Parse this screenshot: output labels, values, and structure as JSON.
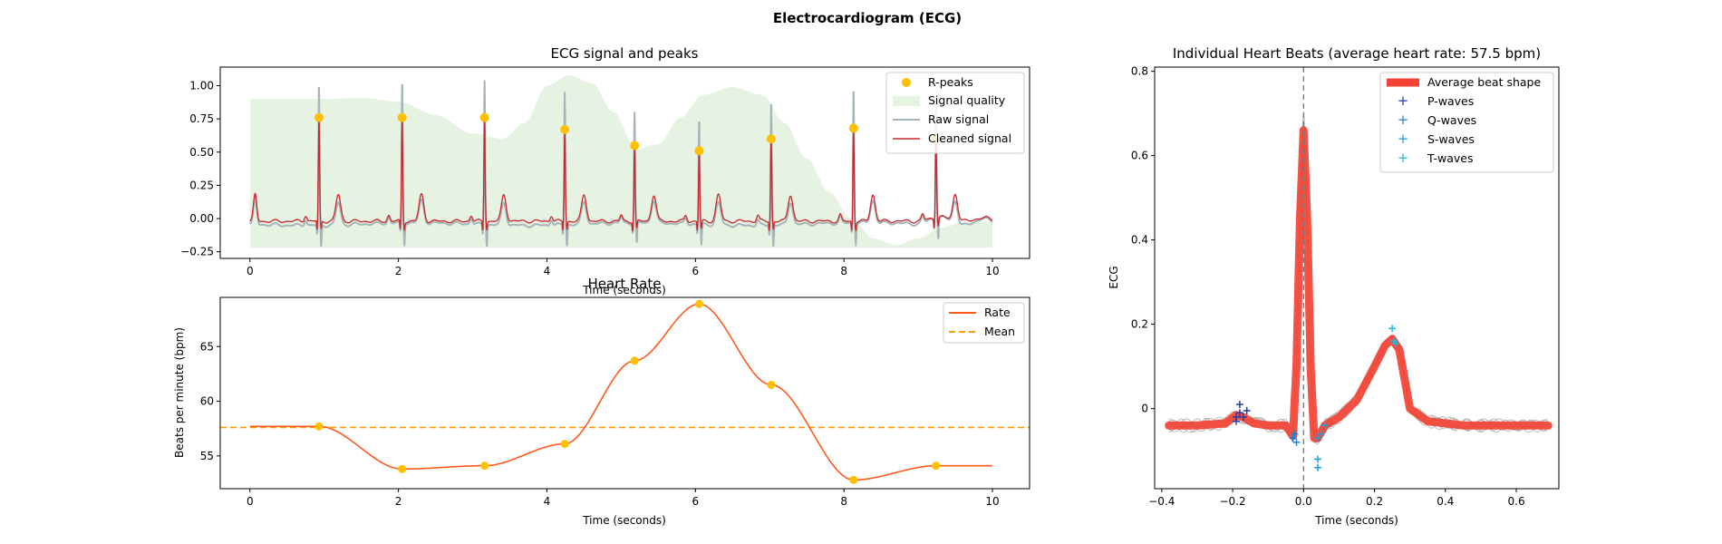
{
  "figure": {
    "title": "Electrocardiogram (ECG)",
    "colors": {
      "peak": "#ffc000",
      "quality": "#e6f3e3",
      "raw": "#a7b5bb",
      "cleaned": "#c9282d",
      "rate": "#ff5a1e",
      "mean": "#ff9d00",
      "average_beat": "#f44336",
      "individual_beats": "#b5b5b5",
      "p_waves": "#1f3fa8",
      "q_waves": "#1f7fd0",
      "s_waves": "#1fa0d8",
      "t_waves": "#20b8d8",
      "guide_line": "#777777"
    }
  },
  "chart_data": [
    {
      "id": "ecg_signal",
      "type": "line",
      "title": "ECG signal and peaks",
      "xlabel": "Time (seconds)",
      "ylabel": "",
      "xlim": [
        -0.4,
        10.5
      ],
      "ylim": [
        -0.3,
        1.14
      ],
      "xticks": [
        0,
        2,
        4,
        6,
        8,
        10
      ],
      "yticks": [
        -0.25,
        0.0,
        0.25,
        0.5,
        0.75,
        1.0
      ],
      "ytick_labels": [
        "−0.25",
        "0.00",
        "0.25",
        "0.50",
        "0.75",
        "1.00"
      ],
      "grid": false,
      "legend": {
        "position": "top-right",
        "entries": [
          "R-peaks",
          "Signal quality",
          "Raw signal",
          "Cleaned signal"
        ]
      },
      "r_peaks": {
        "name": "R-peaks",
        "x": [
          0.93,
          2.05,
          3.16,
          4.24,
          5.18,
          6.05,
          7.02,
          8.13,
          9.24
        ],
        "y": [
          0.76,
          0.76,
          0.76,
          0.67,
          0.55,
          0.51,
          0.6,
          0.68,
          0.6
        ],
        "raw_peak": [
          1.04,
          1.05,
          1.06,
          0.97,
          0.8,
          0.77,
          0.88,
          1.0,
          0.9
        ]
      },
      "signal_quality": {
        "name": "Signal quality",
        "x": [
          0,
          0.5,
          1.0,
          1.5,
          2.0,
          2.5,
          3.0,
          3.4,
          3.7,
          4.0,
          4.3,
          4.6,
          4.9,
          5.2,
          5.5,
          5.8,
          6.1,
          6.5,
          6.9,
          7.2,
          7.5,
          7.8,
          8.1,
          8.4,
          8.7,
          9.0,
          9.3,
          9.6,
          10.0
        ],
        "y": [
          0.9,
          0.9,
          0.9,
          0.91,
          0.88,
          0.78,
          0.64,
          0.6,
          0.72,
          1.0,
          1.08,
          1.02,
          0.8,
          0.52,
          0.56,
          0.76,
          0.93,
          0.99,
          0.93,
          0.72,
          0.45,
          0.2,
          0.0,
          -0.15,
          -0.2,
          -0.15,
          -0.07,
          -0.03,
          -0.02
        ],
        "baseline": -0.22
      },
      "raw_signal": {
        "name": "Raw signal",
        "baseline": -0.03,
        "t_wave_height": 0.17
      },
      "cleaned_signal": {
        "name": "Cleaned signal",
        "baseline": -0.02,
        "t_wave_height": 0.2
      }
    },
    {
      "id": "heart_rate",
      "type": "line",
      "title": "Heart Rate",
      "xlabel": "Time (seconds)",
      "ylabel": "Beats per minute (bpm)",
      "xlim": [
        -0.4,
        10.5
      ],
      "ylim": [
        52.0,
        69.5
      ],
      "xticks": [
        0,
        2,
        4,
        6,
        8,
        10
      ],
      "yticks": [
        55,
        60,
        65
      ],
      "grid": false,
      "legend": {
        "position": "top-right",
        "entries": [
          "Rate",
          "Mean"
        ]
      },
      "series": [
        {
          "name": "Rate",
          "x": [
            0,
            0.93,
            2.05,
            3.16,
            4.24,
            5.18,
            6.05,
            7.02,
            8.13,
            9.24,
            10.0
          ],
          "y": [
            57.7,
            57.7,
            53.8,
            54.1,
            56.1,
            63.7,
            68.9,
            61.5,
            52.8,
            54.1,
            54.1
          ]
        }
      ],
      "points": {
        "x": [
          0.93,
          2.05,
          3.16,
          4.24,
          5.18,
          6.05,
          7.02,
          8.13,
          9.24
        ],
        "y": [
          57.7,
          53.8,
          54.1,
          56.1,
          63.7,
          68.9,
          61.5,
          52.8,
          54.1
        ]
      },
      "mean": {
        "name": "Mean",
        "value": 57.6
      }
    },
    {
      "id": "heart_beats",
      "type": "line",
      "title": "Individual Heart Beats (average heart rate: 57.5 bpm)",
      "xlabel": "Time (seconds)",
      "ylabel": "ECG",
      "xlim": [
        -0.42,
        0.72
      ],
      "ylim": [
        -0.19,
        0.81
      ],
      "xticks": [
        -0.4,
        -0.2,
        0.0,
        0.2,
        0.4,
        0.6
      ],
      "xtick_labels": [
        "−0.4",
        "−0.2",
        "0.0",
        "0.2",
        "0.4",
        "0.6"
      ],
      "yticks": [
        0.0,
        0.2,
        0.4,
        0.6,
        0.8
      ],
      "grid": false,
      "legend": {
        "position": "top-right",
        "entries": [
          "Average beat shape",
          "P-waves",
          "Q-waves",
          "S-waves",
          "T-waves"
        ]
      },
      "average_beat": {
        "name": "Average beat shape",
        "x": [
          -0.38,
          -0.3,
          -0.22,
          -0.19,
          -0.17,
          -0.14,
          -0.1,
          -0.05,
          -0.03,
          -0.02,
          -0.01,
          0.0,
          0.01,
          0.02,
          0.03,
          0.04,
          0.06,
          0.1,
          0.15,
          0.2,
          0.23,
          0.25,
          0.27,
          0.3,
          0.35,
          0.45,
          0.55,
          0.69
        ],
        "y": [
          -0.04,
          -0.04,
          -0.035,
          -0.015,
          -0.02,
          -0.035,
          -0.04,
          -0.04,
          -0.065,
          0.1,
          0.45,
          0.66,
          0.45,
          0.1,
          -0.07,
          -0.07,
          -0.04,
          -0.02,
          0.02,
          0.1,
          0.15,
          0.165,
          0.14,
          0.0,
          -0.03,
          -0.04,
          -0.04,
          -0.04
        ]
      },
      "individual_beats_count": 9,
      "p_waves": {
        "name": "P-waves",
        "x": [
          -0.19,
          -0.18,
          -0.17,
          -0.18,
          -0.16,
          -0.19
        ],
        "y": [
          -0.03,
          0.01,
          -0.02,
          -0.01,
          -0.005,
          -0.02
        ]
      },
      "q_waves": {
        "name": "Q-waves",
        "x": [
          -0.03,
          -0.025,
          -0.02
        ],
        "y": [
          -0.07,
          -0.06,
          -0.08
        ]
      },
      "s_waves": {
        "name": "S-waves",
        "x": [
          0.04,
          0.05,
          0.06,
          0.04,
          0.04
        ],
        "y": [
          -0.07,
          -0.06,
          -0.04,
          -0.12,
          -0.14
        ]
      },
      "t_waves": {
        "name": "T-waves",
        "x": [
          0.25,
          0.255,
          0.26
        ],
        "y": [
          0.19,
          0.16,
          0.155
        ]
      },
      "vline_x": 0.0
    }
  ]
}
